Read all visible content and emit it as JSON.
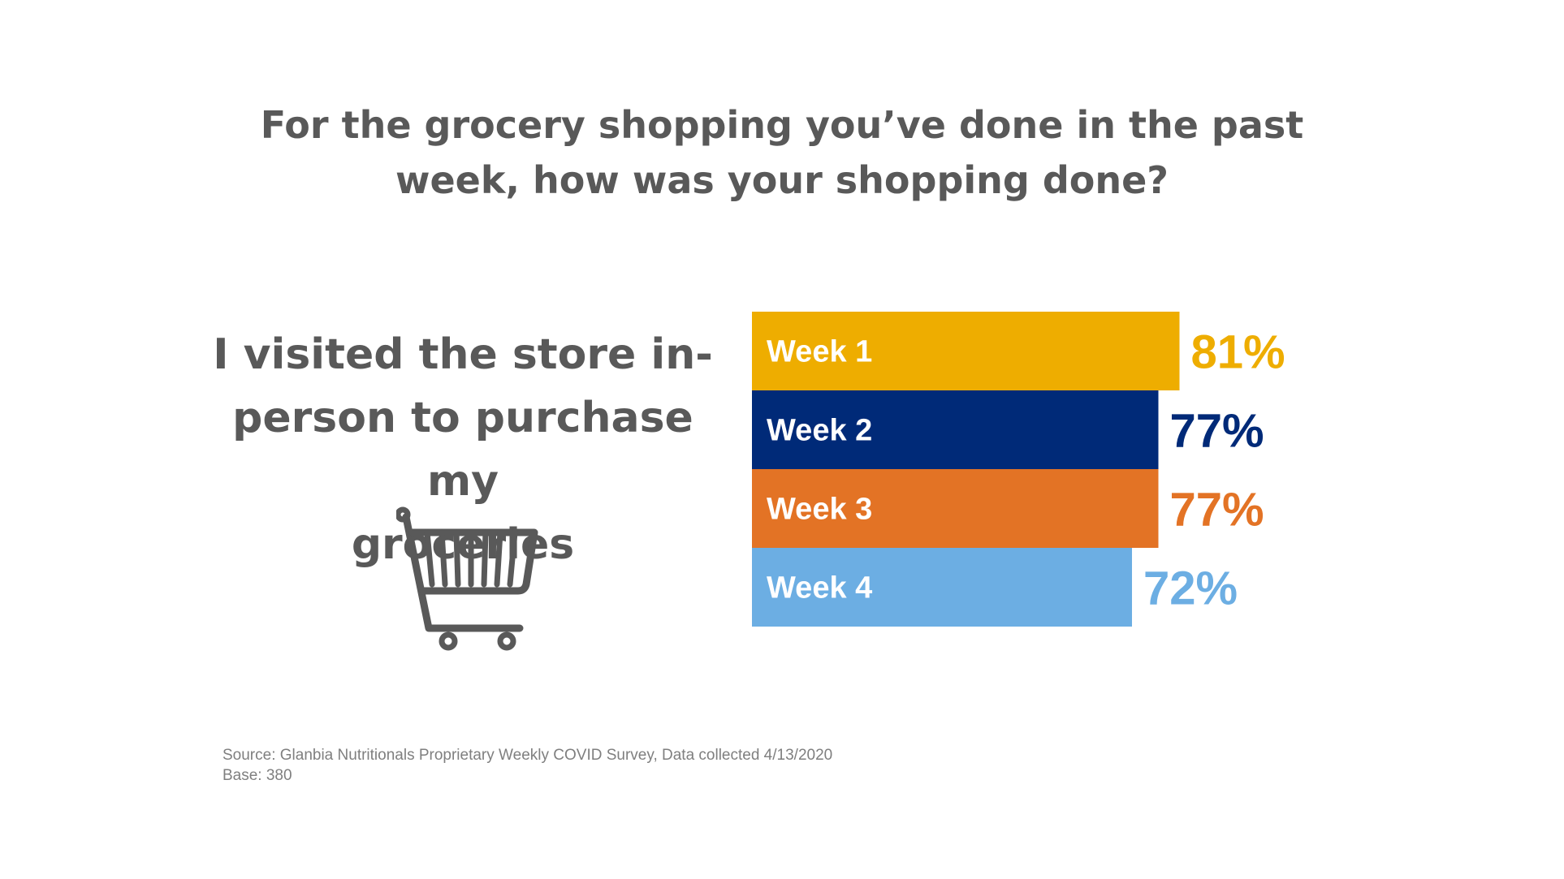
{
  "title": {
    "line1": "For the grocery shopping you’ve done in the past",
    "line2": "week, how was your shopping done?"
  },
  "caption": {
    "line1": "I visited the store in-",
    "line2": "person to purchase my",
    "line3": "groceries"
  },
  "icon": "shopping-cart-icon",
  "chart_data": {
    "type": "bar",
    "orientation": "horizontal",
    "categories": [
      "Week 1",
      "Week 2",
      "Week 3",
      "Week 4"
    ],
    "values": [
      81,
      77,
      77,
      72
    ],
    "value_labels": [
      "81%",
      "77%",
      "77%",
      "72%"
    ],
    "colors": [
      "#EEAD00",
      "#002A78",
      "#E37325",
      "#6CAEE3"
    ],
    "title": "For the grocery shopping you’ve done in the past week, how was your shopping done?",
    "xlabel": "",
    "ylabel": "",
    "grid": false,
    "legend": "none"
  },
  "source": {
    "line1": "Source: Glanbia Nutritionals Proprietary Weekly COVID Survey, Data collected 4/13/2020",
    "line2": "Base: 380"
  }
}
